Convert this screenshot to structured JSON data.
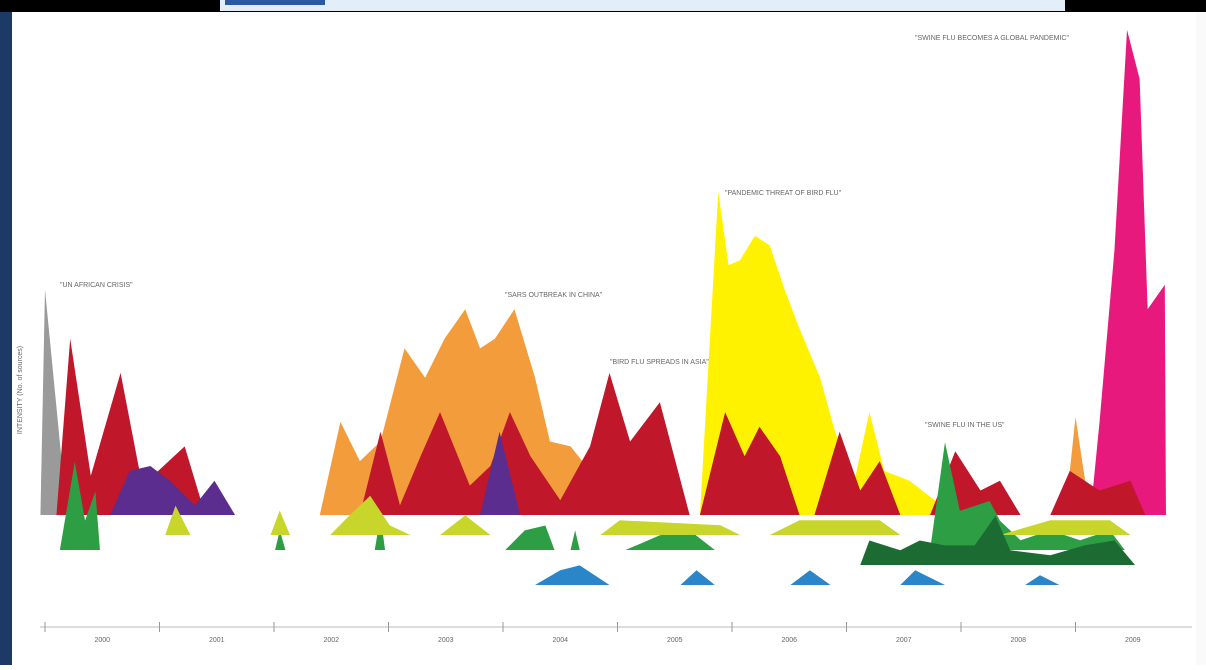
{
  "chart_data": {
    "type": "area",
    "y_label": "INTENSITY (No. of sources)",
    "annotations": [
      "\"UN AFRICAN CRISIS\"",
      "\"SARS OUTBREAK IN CHINA\"",
      "\"BIRD FLU SPREADS IN ASIA\"",
      "\"PANDEMIC THREAT OF BIRD FLU\"",
      "\"SWINE FLU IN THE US\"",
      "\"SWINE FLU BECOMES A GLOBAL PANDEMIC\""
    ],
    "xlim": [
      2000,
      2010
    ],
    "xticks": [
      2000,
      2001,
      2002,
      2003,
      2004,
      2005,
      2006,
      2007,
      2008,
      2009
    ],
    "ylim": [
      0,
      100
    ],
    "series": [
      {
        "color": "#9a9a9a",
        "x": [
          1999.96,
          2000.0,
          2000.15,
          2000.4
        ],
        "values": [
          0,
          46,
          10,
          0
        ]
      },
      {
        "color": "#f39c3c",
        "x": [
          2002.4,
          2002.58,
          2002.75,
          2002.93,
          2003.14,
          2003.32,
          2003.49,
          2003.67,
          2003.8,
          2003.93,
          2004.1,
          2004.28,
          2004.41,
          2004.59,
          2004.76,
          2004.85,
          null,
          2008.91,
          2009.0,
          2009.13
        ],
        "values": [
          0,
          19,
          11,
          15,
          34,
          28,
          36,
          42,
          34,
          36,
          42,
          28,
          15,
          14,
          9,
          0,
          null,
          0,
          20,
          0
        ]
      },
      {
        "color": "#fff200",
        "x": [
          2005.72,
          2005.88,
          2005.97,
          2006.07,
          2006.2,
          2006.33,
          2006.46,
          2006.59,
          2006.77,
          2006.9,
          2007.07,
          2007.2,
          2007.33,
          2007.55,
          2007.77,
          2007.86
        ],
        "values": [
          0,
          66,
          51,
          52,
          57,
          55,
          46,
          38,
          28,
          17,
          7,
          21,
          9,
          7,
          3,
          0
        ]
      },
      {
        "color": "#e8197d",
        "x": [
          2009.13,
          2009.21,
          2009.34,
          2009.45,
          2009.56,
          2009.63,
          2009.78,
          2009.79
        ],
        "values": [
          0,
          19,
          54,
          99,
          89,
          42,
          47,
          0
        ]
      },
      {
        "color": "#c0172b",
        "x": [
          2000.1,
          2000.22,
          2000.4,
          2000.66,
          2000.85,
          2001.22,
          2001.4,
          null,
          2002.75,
          2002.93,
          2003.1,
          2003.28,
          2003.45,
          2003.71,
          2003.89,
          2004.06,
          2004.24,
          2004.5,
          2004.76,
          2004.93,
          2005.11,
          2005.37,
          2005.63,
          null,
          2005.72,
          2005.94,
          2006.11,
          2006.24,
          2006.42,
          2006.59,
          null,
          2006.72,
          2006.94,
          2007.12,
          2007.29,
          2007.47,
          null,
          2007.73,
          2007.95,
          2008.17,
          2008.34,
          2008.52,
          null,
          2008.78,
          2008.95,
          2009.21,
          2009.48,
          2009.61
        ],
        "values": [
          0,
          36,
          8,
          29,
          6,
          14,
          0,
          null,
          0,
          17,
          2,
          12,
          21,
          6,
          10,
          21,
          12,
          3,
          14,
          29,
          15,
          23,
          0,
          null,
          0,
          21,
          12,
          18,
          12,
          0,
          null,
          0,
          17,
          5,
          11,
          0,
          null,
          0,
          13,
          5,
          7,
          0,
          null,
          0,
          9,
          5,
          7,
          0
        ]
      },
      {
        "color": "#5b2d8e",
        "x": [
          2000.57,
          2000.74,
          2000.92,
          2001.09,
          2001.31,
          2001.48,
          2001.66,
          null,
          2003.8,
          2003.97,
          2004.15
        ],
        "values": [
          0,
          9,
          10,
          7,
          2,
          7,
          0,
          null,
          0,
          17,
          0
        ]
      },
      {
        "color": "#2e9e44",
        "x": [
          2000.13,
          2000.26,
          2000.35,
          2000.44,
          2000.48,
          null,
          2002.01,
          2002.05,
          2002.1,
          null,
          2002.88,
          2002.93,
          2002.97,
          null,
          2004.02,
          2004.19,
          2004.37,
          2004.45,
          null,
          2004.59,
          2004.63,
          2004.67,
          null,
          2005.07,
          2005.37,
          2005.63,
          2005.85,
          null,
          2007.73,
          2007.86,
          2007.99,
          2008.25,
          2008.34,
          2008.52,
          2008.78,
          2009.04,
          2009.3,
          2009.43
        ],
        "values": [
          0,
          18,
          6,
          12,
          0,
          null,
          0,
          4,
          0,
          null,
          0,
          7,
          0,
          null,
          0,
          4,
          5,
          0,
          null,
          0,
          4,
          0,
          null,
          0,
          3,
          4,
          0,
          null,
          0,
          22,
          8,
          10,
          6,
          2,
          4,
          2,
          4,
          0
        ]
      },
      {
        "color": "#c8d62b",
        "x": [
          2001.05,
          2001.14,
          2001.27,
          null,
          2001.97,
          2002.05,
          2002.14,
          null,
          2002.49,
          2002.66,
          2002.84,
          2003.01,
          2003.19,
          null,
          2003.45,
          2003.67,
          2003.89,
          null,
          2004.85,
          2005.02,
          2005.9,
          2006.07,
          null,
          2006.33,
          2006.59,
          2007.29,
          2007.47,
          null,
          2008.34,
          2008.78,
          2009.3,
          2009.48
        ],
        "values": [
          0,
          6,
          0,
          null,
          0,
          5,
          0,
          null,
          0,
          4,
          8,
          2,
          0,
          null,
          0,
          4,
          0,
          null,
          0,
          3,
          2,
          0,
          null,
          0,
          3,
          3,
          0,
          null,
          0,
          3,
          3,
          0
        ]
      },
      {
        "color": "#1b6b32",
        "x": [
          2007.12,
          2007.2,
          2007.47,
          2007.64,
          2007.86,
          2008.12,
          2008.3,
          2008.43,
          2008.78,
          2009.08,
          2009.34,
          2009.52
        ],
        "values": [
          0,
          5,
          3,
          5,
          4,
          4,
          10,
          3,
          2,
          4,
          5,
          0
        ]
      },
      {
        "color": "#2a86c9",
        "x": [
          2004.28,
          2004.5,
          2004.67,
          2004.93,
          null,
          2005.55,
          2005.69,
          2005.85,
          null,
          2006.51,
          2006.68,
          2006.86,
          null,
          2007.47,
          2007.6,
          2007.86,
          null,
          2008.56,
          2008.69,
          2008.86
        ],
        "values": [
          0,
          3,
          4,
          0,
          null,
          0,
          3,
          0,
          null,
          0,
          3,
          0,
          null,
          0,
          3,
          0,
          null,
          0,
          2,
          0
        ]
      }
    ]
  }
}
